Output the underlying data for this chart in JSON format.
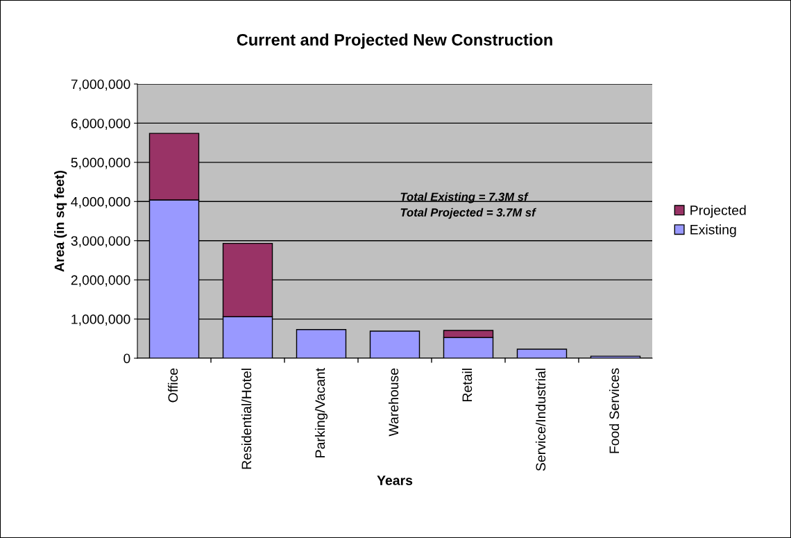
{
  "chart_data": {
    "type": "bar",
    "title": "Current and Projected New Construction",
    "xlabel": "Years",
    "ylabel": "Area (in sq feet)",
    "categories": [
      "Office",
      "Residential/Hotel",
      "Parking/Vacant",
      "Warehouse",
      "Retail",
      "Service/Industrial",
      "Food Services"
    ],
    "stacked": true,
    "series": [
      {
        "name": "Existing",
        "color": "#9999ff",
        "values": [
          4040000,
          1060000,
          730000,
          690000,
          530000,
          230000,
          50000
        ]
      },
      {
        "name": "Projected",
        "color": "#993366",
        "values": [
          1700000,
          1870000,
          null,
          null,
          180000,
          null,
          null
        ]
      }
    ],
    "ylim": [
      0,
      7000000
    ],
    "yticks": [
      {
        "value": 0,
        "label": "0"
      },
      {
        "value": 1000000,
        "label": "1,000,000"
      },
      {
        "value": 2000000,
        "label": "2,000,000"
      },
      {
        "value": 3000000,
        "label": "3,000,000"
      },
      {
        "value": 4000000,
        "label": "4,000,000"
      },
      {
        "value": 5000000,
        "label": "5,000,000"
      },
      {
        "value": 6000000,
        "label": "6,000,000"
      },
      {
        "value": 7000000,
        "label": "7,000,000"
      }
    ],
    "grid": "y",
    "legend": "right",
    "annotations": [
      "Total Existing = 7.3M sf",
      "Total Projected = 3.7M sf"
    ]
  }
}
